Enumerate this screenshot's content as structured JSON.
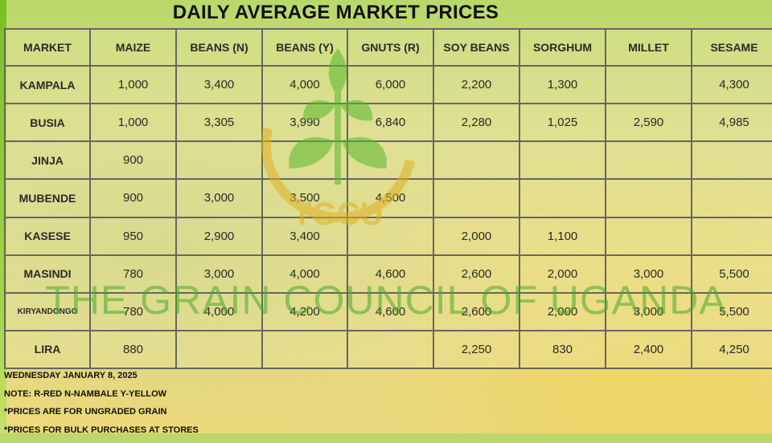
{
  "title": "DAILY AVERAGE MARKET PRICES",
  "columns": [
    "MARKET",
    "MAIZE",
    "BEANS (N)",
    "BEANS (Y)",
    "GNUTS (R)",
    "SOY BEANS",
    "SORGHUM",
    "MILLET",
    "SESAME"
  ],
  "rows": [
    {
      "market": "KAMPALA",
      "values": [
        "1,000",
        "3,400",
        "4,000",
        "6,000",
        "2,200",
        "1,300",
        "",
        "4,300"
      ]
    },
    {
      "market": "BUSIA",
      "values": [
        "1,000",
        "3,305",
        "3,990",
        "6,840",
        "2,280",
        "1,025",
        "2,590",
        "4,985"
      ]
    },
    {
      "market": "JINJA",
      "values": [
        "900",
        "",
        "",
        "",
        "",
        "",
        "",
        ""
      ]
    },
    {
      "market": "MUBENDE",
      "values": [
        "900",
        "3,000",
        "3,500",
        "4,500",
        "",
        "",
        "",
        ""
      ]
    },
    {
      "market": "KASESE",
      "values": [
        "950",
        "2,900",
        "3,400",
        "",
        "2,000",
        "1,100",
        "",
        ""
      ]
    },
    {
      "market": "MASINDI",
      "values": [
        "780",
        "3,000",
        "4,000",
        "4,600",
        "2,600",
        "2,000",
        "3,000",
        "5,500"
      ]
    },
    {
      "market": "KIRYANDONGO",
      "values": [
        "780",
        "4,000",
        "4,200",
        "4,600",
        "2,600",
        "2,000",
        "3,000",
        "5,500"
      ]
    },
    {
      "market": "LIRA",
      "values": [
        "880",
        "",
        "",
        "",
        "2,250",
        "830",
        "2,400",
        "4,250"
      ]
    }
  ],
  "watermark": {
    "org_name": "THE GRAIN COUNCIL OF UGANDA",
    "logo_text": "TGCU"
  },
  "notes": {
    "date": "WEDNESDAY JANUARY 8, 2025",
    "legend": "NOTE: R-RED N-NAMBALE Y-YELLOW",
    "note1": "*PRICES ARE FOR UNGRADED GRAIN",
    "note2": "*PRICES FOR BULK PURCHASES AT STORES"
  },
  "colors": {
    "accent_green": "#58b82c",
    "logo_yellow": "#e0b020",
    "grid_line": "#666666"
  },
  "icons": [
    "grain-leaf-icon"
  ]
}
